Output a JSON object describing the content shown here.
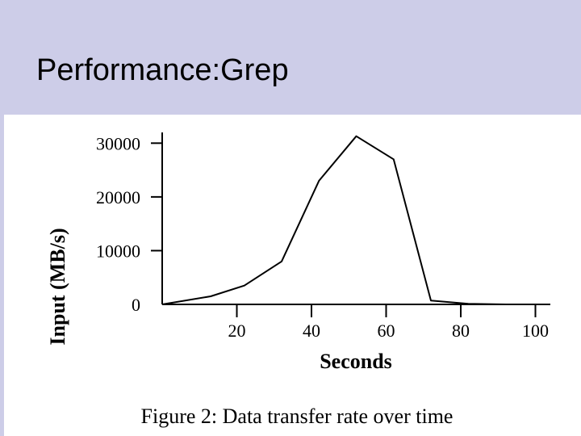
{
  "slide": {
    "title": "Performance:Grep"
  },
  "chart_data": {
    "type": "line",
    "title": "",
    "caption": "Figure 2: Data transfer rate over time",
    "xlabel": "Seconds",
    "ylabel": "Input (MB/s)",
    "xlim": [
      0,
      104
    ],
    "ylim": [
      0,
      32000
    ],
    "x_ticks": [
      20,
      40,
      60,
      80,
      100
    ],
    "y_ticks": [
      0,
      10000,
      20000,
      30000
    ],
    "grid": false,
    "series": [
      {
        "x": [
          0,
          13,
          22,
          32,
          42,
          52,
          62,
          72,
          82,
          92,
          102
        ],
        "y": [
          0,
          1500,
          3500,
          8000,
          23000,
          31300,
          27000,
          700,
          100,
          0,
          0
        ],
        "color": "#000000"
      }
    ]
  }
}
